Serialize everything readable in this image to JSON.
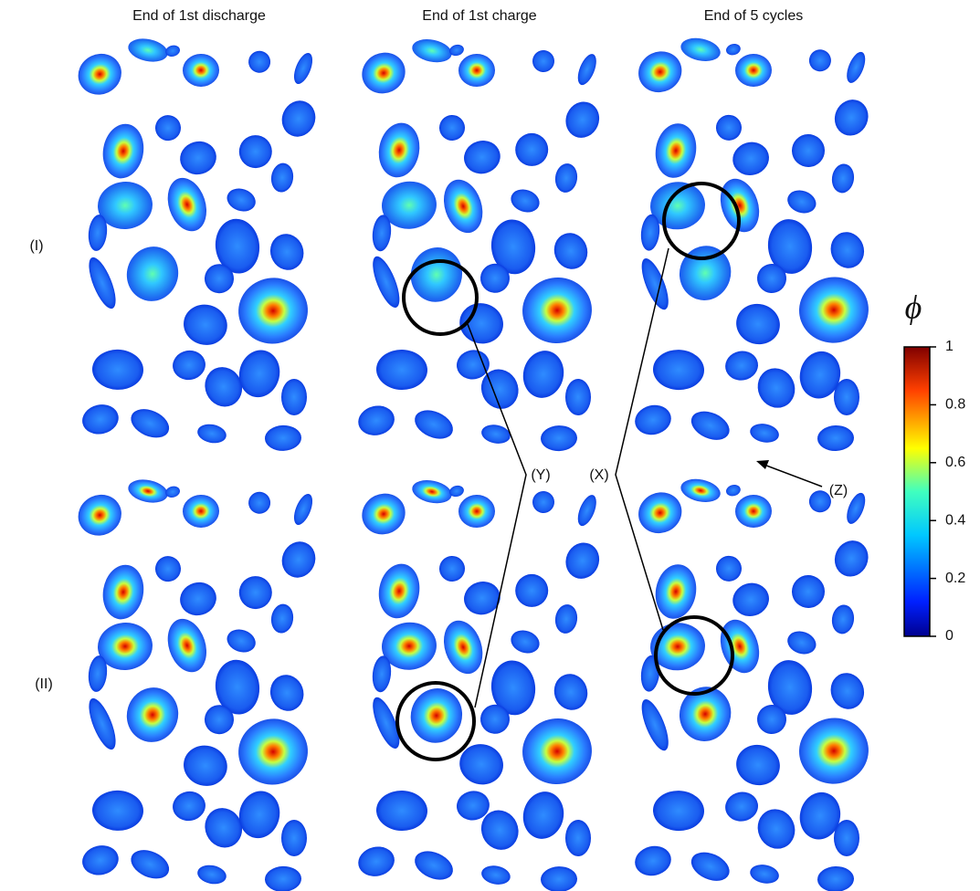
{
  "column_titles": [
    "End of 1st discharge",
    "End of 1st charge",
    "End of 5 cycles"
  ],
  "row_labels": [
    "(I)",
    "(II)"
  ],
  "annotations": {
    "x": "(X)",
    "y": "(Y)",
    "z": "(Z)"
  },
  "colorbar": {
    "label": "ϕ",
    "lim": [
      0,
      1
    ],
    "ticks": [
      0,
      0.2,
      0.4,
      0.6,
      0.8,
      1
    ]
  }
}
